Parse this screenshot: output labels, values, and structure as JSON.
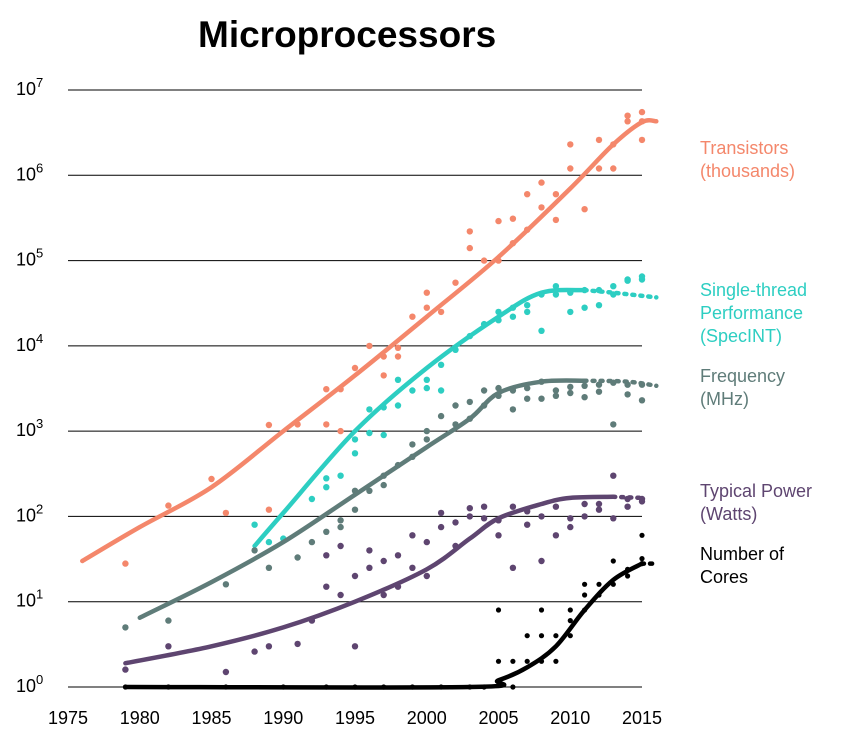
{
  "chart_data": {
    "type": "scatter",
    "title": "Microprocessors",
    "y_scale": "log10",
    "ylim_exp": [
      0,
      7
    ],
    "xlim": [
      1975,
      2015
    ],
    "x_ticks": [
      "1975",
      "1980",
      "1985",
      "1990",
      "1995",
      "2000",
      "2005",
      "2010",
      "2015"
    ],
    "y_ticks": [
      {
        "base": "10",
        "exp": "0"
      },
      {
        "base": "10",
        "exp": "1"
      },
      {
        "base": "10",
        "exp": "2"
      },
      {
        "base": "10",
        "exp": "3"
      },
      {
        "base": "10",
        "exp": "4"
      },
      {
        "base": "10",
        "exp": "5"
      },
      {
        "base": "10",
        "exp": "6"
      },
      {
        "base": "10",
        "exp": "7"
      }
    ],
    "grid": "horizontal",
    "legend": "right",
    "series": [
      {
        "name": "Transistors (thousands)",
        "label_lines": [
          "Transistors",
          "(thousands)"
        ],
        "color": "#f4876b",
        "points": [
          [
            1979,
            28
          ],
          [
            1982,
            134
          ],
          [
            1985,
            275
          ],
          [
            1986,
            110
          ],
          [
            1989,
            120
          ],
          [
            1989,
            1180
          ],
          [
            1991,
            1200
          ],
          [
            1993,
            1200
          ],
          [
            1993,
            3100
          ],
          [
            1994,
            3100
          ],
          [
            1994,
            1000
          ],
          [
            1995,
            5500
          ],
          [
            1996,
            10000
          ],
          [
            1997,
            7500
          ],
          [
            1997,
            4500
          ],
          [
            1998,
            7500
          ],
          [
            1998,
            9500
          ],
          [
            1999,
            22000
          ],
          [
            2000,
            42000
          ],
          [
            2000,
            28000
          ],
          [
            2001,
            25000
          ],
          [
            2002,
            55000
          ],
          [
            2003,
            220000
          ],
          [
            2003,
            140000
          ],
          [
            2004,
            100000
          ],
          [
            2005,
            290000
          ],
          [
            2005,
            100000
          ],
          [
            2006,
            160000
          ],
          [
            2006,
            310000
          ],
          [
            2007,
            230000
          ],
          [
            2007,
            600000
          ],
          [
            2008,
            820000
          ],
          [
            2008,
            420000
          ],
          [
            2009,
            600000
          ],
          [
            2009,
            300000
          ],
          [
            2010,
            2300000
          ],
          [
            2010,
            1200000
          ],
          [
            2011,
            400000
          ],
          [
            2012,
            2600000
          ],
          [
            2012,
            1200000
          ],
          [
            2013,
            2300000
          ],
          [
            2013,
            1200000
          ],
          [
            2014,
            5000000
          ],
          [
            2014,
            4300000
          ],
          [
            2015,
            4300000
          ],
          [
            2015,
            5500000
          ],
          [
            2015,
            2600000
          ]
        ],
        "trend": [
          [
            1976,
            30
          ],
          [
            1980,
            75
          ],
          [
            1985,
            220
          ],
          [
            1990,
            1000
          ],
          [
            1995,
            4500
          ],
          [
            2000,
            22000
          ],
          [
            2005,
            110000
          ],
          [
            2010,
            700000
          ],
          [
            2013,
            2300000
          ],
          [
            2015,
            4200000
          ],
          [
            2016,
            4300000
          ]
        ]
      },
      {
        "name": "Single-thread Performance (SpecINT)",
        "label_lines": [
          "Single-thread",
          "Performance",
          "(SpecINT)"
        ],
        "color": "#2dcec2",
        "points": [
          [
            1988,
            80
          ],
          [
            1989,
            50
          ],
          [
            1990,
            55
          ],
          [
            1992,
            160
          ],
          [
            1993,
            280
          ],
          [
            1993,
            220
          ],
          [
            1994,
            300
          ],
          [
            1995,
            550
          ],
          [
            1995,
            800
          ],
          [
            1996,
            950
          ],
          [
            1996,
            1800
          ],
          [
            1997,
            1900
          ],
          [
            1997,
            900
          ],
          [
            1998,
            2000
          ],
          [
            1998,
            4000
          ],
          [
            1999,
            3000
          ],
          [
            2000,
            3200
          ],
          [
            2000,
            4000
          ],
          [
            2001,
            6000
          ],
          [
            2001,
            3000
          ],
          [
            2002,
            9000
          ],
          [
            2003,
            13000
          ],
          [
            2004,
            18000
          ],
          [
            2005,
            25000
          ],
          [
            2005,
            20000
          ],
          [
            2006,
            28000
          ],
          [
            2006,
            22000
          ],
          [
            2007,
            30000
          ],
          [
            2007,
            25000
          ],
          [
            2008,
            40000
          ],
          [
            2008,
            15000
          ],
          [
            2009,
            50000
          ],
          [
            2009,
            40000
          ],
          [
            2010,
            25000
          ],
          [
            2010,
            42000
          ],
          [
            2011,
            45000
          ],
          [
            2011,
            28000
          ],
          [
            2012,
            30000
          ],
          [
            2012,
            45000
          ],
          [
            2013,
            50000
          ],
          [
            2013,
            40000
          ],
          [
            2014,
            60000
          ],
          [
            2014,
            58000
          ],
          [
            2015,
            60000
          ],
          [
            2015,
            65000
          ]
        ],
        "trend": [
          [
            1988,
            45
          ],
          [
            1990,
            110
          ],
          [
            1995,
            1000
          ],
          [
            2000,
            5500
          ],
          [
            2005,
            22000
          ],
          [
            2008,
            42000
          ],
          [
            2011,
            45000
          ]
        ],
        "trend_dotted": [
          [
            2011,
            45000
          ],
          [
            2013,
            42000
          ],
          [
            2016,
            37000
          ]
        ]
      },
      {
        "name": "Frequency (MHz)",
        "label_lines": [
          "Frequency",
          "(MHz)"
        ],
        "color": "#5f7c79",
        "points": [
          [
            1979,
            5
          ],
          [
            1982,
            6
          ],
          [
            1986,
            16
          ],
          [
            1988,
            40
          ],
          [
            1989,
            25
          ],
          [
            1991,
            33
          ],
          [
            1992,
            50
          ],
          [
            1993,
            66
          ],
          [
            1994,
            90
          ],
          [
            1994,
            75
          ],
          [
            1995,
            120
          ],
          [
            1995,
            200
          ],
          [
            1996,
            200
          ],
          [
            1997,
            300
          ],
          [
            1997,
            233
          ],
          [
            1998,
            400
          ],
          [
            1999,
            500
          ],
          [
            1999,
            700
          ],
          [
            2000,
            1000
          ],
          [
            2000,
            800
          ],
          [
            2001,
            1500
          ],
          [
            2002,
            2000
          ],
          [
            2002,
            1200
          ],
          [
            2003,
            2200
          ],
          [
            2003,
            1400
          ],
          [
            2004,
            3000
          ],
          [
            2004,
            2000
          ],
          [
            2005,
            3200
          ],
          [
            2005,
            2600
          ],
          [
            2006,
            3000
          ],
          [
            2006,
            1800
          ],
          [
            2007,
            3200
          ],
          [
            2007,
            2400
          ],
          [
            2008,
            3800
          ],
          [
            2008,
            2400
          ],
          [
            2009,
            3000
          ],
          [
            2009,
            2600
          ],
          [
            2010,
            3300
          ],
          [
            2010,
            2800
          ],
          [
            2011,
            3400
          ],
          [
            2011,
            2500
          ],
          [
            2012,
            3500
          ],
          [
            2012,
            2900
          ],
          [
            2013,
            3700
          ],
          [
            2013,
            1200
          ],
          [
            2014,
            3500
          ],
          [
            2014,
            2700
          ],
          [
            2015,
            3500
          ],
          [
            2015,
            2300
          ]
        ],
        "trend": [
          [
            1980,
            6.5
          ],
          [
            1985,
            17
          ],
          [
            1990,
            50
          ],
          [
            1995,
            180
          ],
          [
            2000,
            650
          ],
          [
            2003,
            1400
          ],
          [
            2005,
            2800
          ],
          [
            2008,
            3800
          ],
          [
            2011,
            3900
          ]
        ],
        "trend_dotted": [
          [
            2011,
            3900
          ],
          [
            2014,
            3800
          ],
          [
            2016,
            3400
          ]
        ]
      },
      {
        "name": "Typical Power (Watts)",
        "label_lines": [
          "Typical Power",
          "(Watts)"
        ],
        "color": "#5e4570",
        "points": [
          [
            1979,
            1.6
          ],
          [
            1982,
            3
          ],
          [
            1986,
            1.5
          ],
          [
            1988,
            2.6
          ],
          [
            1989,
            3
          ],
          [
            1991,
            3.2
          ],
          [
            1992,
            6
          ],
          [
            1993,
            15
          ],
          [
            1993,
            35
          ],
          [
            1994,
            12
          ],
          [
            1994,
            45
          ],
          [
            1995,
            3
          ],
          [
            1995,
            20
          ],
          [
            1996,
            25
          ],
          [
            1996,
            40
          ],
          [
            1997,
            12
          ],
          [
            1997,
            30
          ],
          [
            1998,
            35
          ],
          [
            1998,
            15
          ],
          [
            1999,
            60
          ],
          [
            1999,
            25
          ],
          [
            2000,
            20
          ],
          [
            2000,
            50
          ],
          [
            2001,
            75
          ],
          [
            2001,
            110
          ],
          [
            2002,
            45
          ],
          [
            2002,
            85
          ],
          [
            2003,
            100
          ],
          [
            2003,
            125
          ],
          [
            2004,
            95
          ],
          [
            2004,
            130
          ],
          [
            2005,
            90
          ],
          [
            2005,
            60
          ],
          [
            2006,
            130
          ],
          [
            2006,
            25
          ],
          [
            2007,
            115
          ],
          [
            2007,
            80
          ],
          [
            2008,
            100
          ],
          [
            2008,
            30
          ],
          [
            2009,
            130
          ],
          [
            2009,
            60
          ],
          [
            2010,
            95
          ],
          [
            2010,
            75
          ],
          [
            2011,
            140
          ],
          [
            2011,
            100
          ],
          [
            2012,
            140
          ],
          [
            2012,
            120
          ],
          [
            2013,
            95
          ],
          [
            2013,
            300
          ],
          [
            2014,
            160
          ],
          [
            2014,
            130
          ],
          [
            2015,
            160
          ],
          [
            2015,
            150
          ]
        ],
        "trend": [
          [
            1979,
            1.9
          ],
          [
            1985,
            3
          ],
          [
            1990,
            5
          ],
          [
            1995,
            10
          ],
          [
            2000,
            24
          ],
          [
            2003,
            55
          ],
          [
            2005,
            95
          ],
          [
            2008,
            140
          ],
          [
            2010,
            165
          ],
          [
            2013,
            170
          ]
        ],
        "trend_dotted": [
          [
            2013,
            170
          ],
          [
            2015,
            165
          ]
        ]
      },
      {
        "name": "Number of Cores",
        "label_lines": [
          "Number of",
          "Cores"
        ],
        "color": "#000000",
        "points": [
          [
            1979,
            1
          ],
          [
            1982,
            1
          ],
          [
            1986,
            1
          ],
          [
            1990,
            1
          ],
          [
            1993,
            1
          ],
          [
            1995,
            1
          ],
          [
            1997,
            1
          ],
          [
            1999,
            1
          ],
          [
            2001,
            1
          ],
          [
            2003,
            1
          ],
          [
            2004,
            1
          ],
          [
            2005,
            2
          ],
          [
            2005,
            8
          ],
          [
            2006,
            2
          ],
          [
            2006,
            1
          ],
          [
            2007,
            4
          ],
          [
            2007,
            2
          ],
          [
            2008,
            8
          ],
          [
            2008,
            4
          ],
          [
            2008,
            2
          ],
          [
            2009,
            4
          ],
          [
            2009,
            2
          ],
          [
            2010,
            6
          ],
          [
            2010,
            8
          ],
          [
            2010,
            4
          ],
          [
            2011,
            16
          ],
          [
            2011,
            12
          ],
          [
            2011,
            8
          ],
          [
            2012,
            16
          ],
          [
            2012,
            12
          ],
          [
            2013,
            16
          ],
          [
            2013,
            30
          ],
          [
            2014,
            24
          ],
          [
            2014,
            20
          ],
          [
            2015,
            60
          ],
          [
            2015,
            32
          ],
          [
            2015,
            28
          ]
        ],
        "trend": [
          [
            1979,
            1
          ],
          [
            2003,
            1
          ],
          [
            2005,
            1.2
          ],
          [
            2007,
            1.7
          ],
          [
            2009,
            3
          ],
          [
            2011,
            8
          ],
          [
            2013,
            18
          ],
          [
            2015,
            28
          ]
        ],
        "trend_dotted": [
          [
            2015,
            28
          ],
          [
            2016,
            28
          ]
        ]
      }
    ]
  }
}
